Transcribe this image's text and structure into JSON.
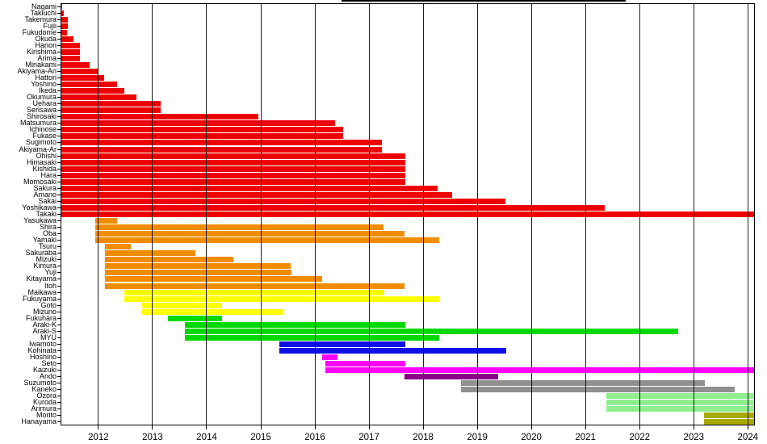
{
  "chart": {
    "title": "",
    "background": "#ffffff"
  },
  "chart_data": {
    "type": "bar",
    "subtype": "horizontal-gantt-tenure",
    "title": "",
    "xlabel": "",
    "ylabel": "",
    "legend": "none",
    "grid": "vertical black year gridlines drawn over bars",
    "x_ticks": [
      2012,
      2013,
      2014,
      2015,
      2016,
      2017,
      2018,
      2019,
      2020,
      2021,
      2022,
      2023,
      2024
    ],
    "xlim": [
      2011.3,
      2024.13
    ],
    "groups": {
      "red": "#ee0000",
      "orange": "#f08c00",
      "yellow": "#ffff00",
      "green": "#00d900",
      "blue": "#0f0fe8",
      "magenta": "#ff00ff",
      "purple": "#880088",
      "gray": "#909090",
      "lightgreen": "#90ee90",
      "olive": "#a9a900"
    },
    "members": [
      {
        "name": "Nagami",
        "start": 2011.3,
        "end": 2011.33,
        "group": "red"
      },
      {
        "name": "Takiuchi",
        "start": 2011.3,
        "end": 2011.36,
        "group": "red"
      },
      {
        "name": "Takemura",
        "start": 2011.3,
        "end": 2011.43,
        "group": "red"
      },
      {
        "name": "Fujii",
        "start": 2011.3,
        "end": 2011.43,
        "group": "red"
      },
      {
        "name": "Fukudome",
        "start": 2011.3,
        "end": 2011.42,
        "group": "red"
      },
      {
        "name": "Okuda",
        "start": 2011.3,
        "end": 2011.54,
        "group": "red"
      },
      {
        "name": "Hanon",
        "start": 2011.3,
        "end": 2011.66,
        "group": "red"
      },
      {
        "name": "Kirishima",
        "start": 2011.3,
        "end": 2011.66,
        "group": "red"
      },
      {
        "name": "Arima",
        "start": 2011.3,
        "end": 2011.66,
        "group": "red"
      },
      {
        "name": "Minakami",
        "start": 2011.3,
        "end": 2011.84,
        "group": "red"
      },
      {
        "name": "Akiyama-An",
        "start": 2011.3,
        "end": 2012.0,
        "group": "red"
      },
      {
        "name": "Hattori",
        "start": 2011.3,
        "end": 2012.11,
        "group": "red"
      },
      {
        "name": "Yoshino",
        "start": 2011.3,
        "end": 2012.34,
        "group": "red"
      },
      {
        "name": "Ikeda",
        "start": 2011.3,
        "end": 2012.48,
        "group": "red"
      },
      {
        "name": "Okumura",
        "start": 2011.3,
        "end": 2012.7,
        "group": "red"
      },
      {
        "name": "Uehara",
        "start": 2011.3,
        "end": 2013.15,
        "group": "red"
      },
      {
        "name": "Serisawa",
        "start": 2011.3,
        "end": 2013.15,
        "group": "red"
      },
      {
        "name": "Shirosaki",
        "start": 2011.3,
        "end": 2014.96,
        "group": "red"
      },
      {
        "name": "Matsumura",
        "start": 2011.3,
        "end": 2016.37,
        "group": "red"
      },
      {
        "name": "Ichinose",
        "start": 2011.3,
        "end": 2016.52,
        "group": "red"
      },
      {
        "name": "Fukase",
        "start": 2011.3,
        "end": 2016.52,
        "group": "red"
      },
      {
        "name": "Sugimoto",
        "start": 2011.3,
        "end": 2017.24,
        "group": "red"
      },
      {
        "name": "Akiyama-Ar",
        "start": 2011.3,
        "end": 2017.24,
        "group": "red"
      },
      {
        "name": "Ohishi",
        "start": 2011.3,
        "end": 2017.67,
        "group": "red"
      },
      {
        "name": "Himasaki",
        "start": 2011.3,
        "end": 2017.67,
        "group": "red"
      },
      {
        "name": "Kishida",
        "start": 2011.3,
        "end": 2017.67,
        "group": "red"
      },
      {
        "name": "Hara",
        "start": 2011.3,
        "end": 2017.67,
        "group": "red"
      },
      {
        "name": "Momosaki",
        "start": 2011.3,
        "end": 2017.67,
        "group": "red"
      },
      {
        "name": "Sakura",
        "start": 2011.3,
        "end": 2018.27,
        "group": "red"
      },
      {
        "name": "Amano",
        "start": 2011.3,
        "end": 2018.54,
        "group": "red"
      },
      {
        "name": "Sakai",
        "start": 2011.3,
        "end": 2019.52,
        "group": "red"
      },
      {
        "name": "Yoshikawa",
        "start": 2011.3,
        "end": 2021.36,
        "group": "red"
      },
      {
        "name": "Takaki",
        "start": 2011.3,
        "end": 2024.13,
        "group": "red"
      },
      {
        "name": "Yasukawa",
        "start": 2011.94,
        "end": 2012.35,
        "group": "orange"
      },
      {
        "name": "Shira",
        "start": 2011.94,
        "end": 2017.27,
        "group": "orange"
      },
      {
        "name": "Oba",
        "start": 2011.94,
        "end": 2017.66,
        "group": "orange"
      },
      {
        "name": "Yamaki",
        "start": 2011.94,
        "end": 2018.29,
        "group": "orange"
      },
      {
        "name": "Tsuru",
        "start": 2012.12,
        "end": 2012.6,
        "group": "orange"
      },
      {
        "name": "Sakuraba",
        "start": 2012.12,
        "end": 2013.79,
        "group": "orange"
      },
      {
        "name": "Mizuki",
        "start": 2012.12,
        "end": 2014.5,
        "group": "orange"
      },
      {
        "name": "Kimura",
        "start": 2012.12,
        "end": 2015.55,
        "group": "orange"
      },
      {
        "name": "Yuji",
        "start": 2012.12,
        "end": 2015.57,
        "group": "orange"
      },
      {
        "name": "Kitayama",
        "start": 2012.12,
        "end": 2016.13,
        "group": "orange"
      },
      {
        "name": "Itoh",
        "start": 2012.12,
        "end": 2017.65,
        "group": "orange"
      },
      {
        "name": "Maikawa",
        "start": 2012.48,
        "end": 2017.28,
        "group": "yellow"
      },
      {
        "name": "Fukuyama",
        "start": 2012.48,
        "end": 2018.29,
        "group": "yellow"
      },
      {
        "name": "Goto",
        "start": 2012.81,
        "end": 2014.28,
        "group": "yellow"
      },
      {
        "name": "Mizuno",
        "start": 2012.79,
        "end": 2015.43,
        "group": "yellow"
      },
      {
        "name": "Fukuhara",
        "start": 2013.29,
        "end": 2014.28,
        "group": "green"
      },
      {
        "name": "Araki-K",
        "start": 2013.6,
        "end": 2017.67,
        "group": "green"
      },
      {
        "name": "Araki-S",
        "start": 2013.6,
        "end": 2022.71,
        "group": "green"
      },
      {
        "name": "MYU",
        "start": 2013.6,
        "end": 2018.29,
        "group": "green"
      },
      {
        "name": "Iwamoto",
        "start": 2015.35,
        "end": 2017.67,
        "group": "blue"
      },
      {
        "name": "Kohinata",
        "start": 2015.35,
        "end": 2019.53,
        "group": "blue"
      },
      {
        "name": "Hoshino",
        "start": 2016.14,
        "end": 2016.41,
        "group": "magenta"
      },
      {
        "name": "Seto",
        "start": 2016.2,
        "end": 2017.67,
        "group": "magenta"
      },
      {
        "name": "Kaizuki",
        "start": 2016.2,
        "end": 2024.13,
        "group": "magenta"
      },
      {
        "name": "Ando",
        "start": 2017.65,
        "end": 2019.38,
        "group": "purple"
      },
      {
        "name": "Suzumoto",
        "start": 2018.7,
        "end": 2023.21,
        "group": "gray"
      },
      {
        "name": "Kaneko",
        "start": 2018.7,
        "end": 2023.76,
        "group": "gray"
      },
      {
        "name": "Ozora",
        "start": 2021.38,
        "end": 2024.13,
        "group": "lightgreen"
      },
      {
        "name": "Kuroda",
        "start": 2021.38,
        "end": 2024.13,
        "group": "lightgreen"
      },
      {
        "name": "Arimura",
        "start": 2021.38,
        "end": 2024.13,
        "group": "lightgreen"
      },
      {
        "name": "Morito",
        "start": 2023.19,
        "end": 2024.13,
        "group": "olive"
      },
      {
        "name": "Hanayama",
        "start": 2023.19,
        "end": 2024.13,
        "group": "olive"
      }
    ]
  }
}
